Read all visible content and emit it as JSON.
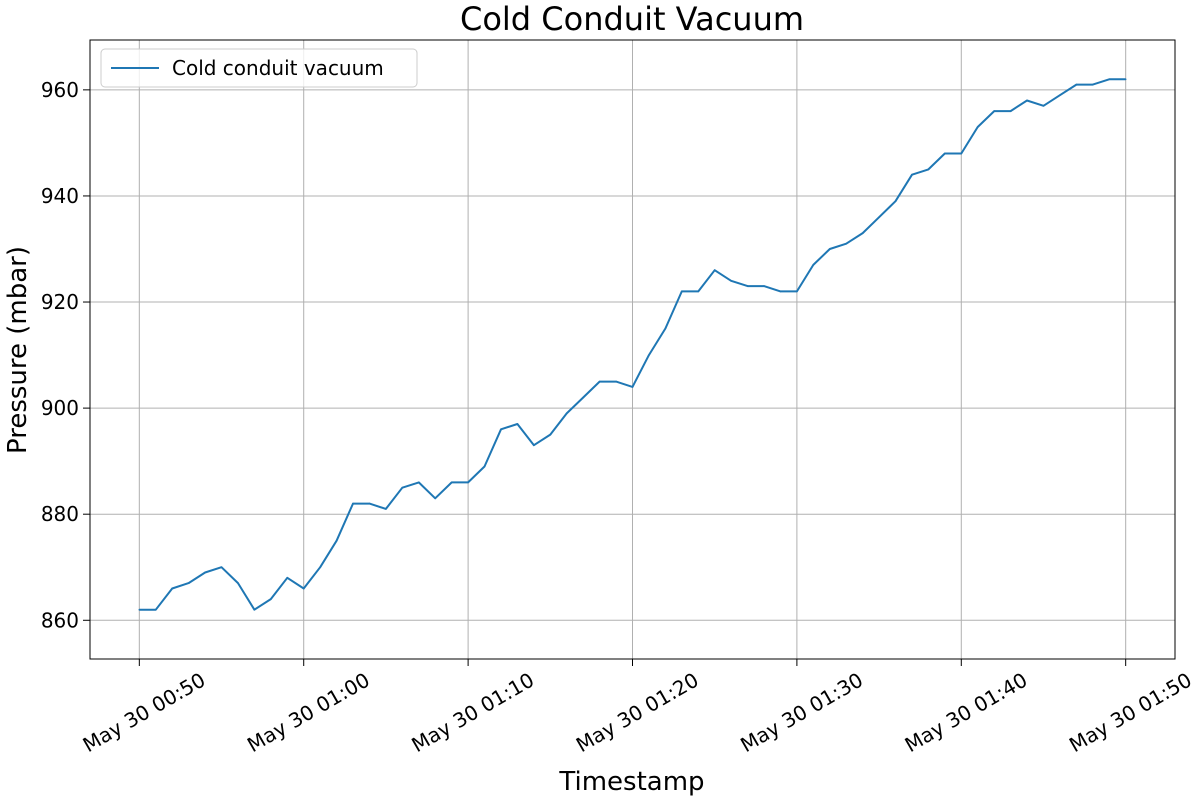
{
  "chart_data": {
    "type": "line",
    "title": "Cold Conduit Vacuum",
    "xlabel": "Timestamp",
    "ylabel": "Pressure (mbar)",
    "x_ticks": [
      "May 30 00:50",
      "May 30 01:00",
      "May 30 01:10",
      "May 30 01:20",
      "May 30 01:30",
      "May 30 01:40",
      "May 30 01:50"
    ],
    "y_ticks": [
      860,
      880,
      900,
      920,
      940,
      960
    ],
    "xlim": [
      "May 30 00:47",
      "May 30 01:53"
    ],
    "ylim": [
      852.7,
      969.4
    ],
    "grid": true,
    "legend_position": "upper left",
    "series": [
      {
        "name": "Cold conduit vacuum",
        "color": "#1f77b4",
        "x": [
          "May 30 00:50",
          "May 30 00:51",
          "May 30 00:52",
          "May 30 00:53",
          "May 30 00:54",
          "May 30 00:55",
          "May 30 00:56",
          "May 30 00:57",
          "May 30 00:58",
          "May 30 00:59",
          "May 30 01:00",
          "May 30 01:01",
          "May 30 01:02",
          "May 30 01:03",
          "May 30 01:04",
          "May 30 01:05",
          "May 30 01:06",
          "May 30 01:07",
          "May 30 01:08",
          "May 30 01:09",
          "May 30 01:10",
          "May 30 01:11",
          "May 30 01:12",
          "May 30 01:13",
          "May 30 01:14",
          "May 30 01:15",
          "May 30 01:16",
          "May 30 01:17",
          "May 30 01:18",
          "May 30 01:19",
          "May 30 01:20",
          "May 30 01:21",
          "May 30 01:22",
          "May 30 01:23",
          "May 30 01:24",
          "May 30 01:25",
          "May 30 01:26",
          "May 30 01:27",
          "May 30 01:28",
          "May 30 01:29",
          "May 30 01:30",
          "May 30 01:31",
          "May 30 01:32",
          "May 30 01:33",
          "May 30 01:34",
          "May 30 01:35",
          "May 30 01:36",
          "May 30 01:37",
          "May 30 01:38",
          "May 30 01:39",
          "May 30 01:40",
          "May 30 01:41",
          "May 30 01:42",
          "May 30 01:43",
          "May 30 01:44",
          "May 30 01:45",
          "May 30 01:46",
          "May 30 01:47",
          "May 30 01:48",
          "May 30 01:49",
          "May 30 01:50"
        ],
        "values": [
          862,
          862,
          866,
          867,
          869,
          870,
          867,
          862,
          864,
          868,
          866,
          870,
          875,
          882,
          882,
          881,
          885,
          886,
          883,
          886,
          886,
          889,
          896,
          897,
          893,
          895,
          899,
          902,
          905,
          905,
          904,
          910,
          915,
          922,
          922,
          926,
          924,
          923,
          923,
          922,
          922,
          927,
          930,
          931,
          933,
          936,
          939,
          944,
          945,
          948,
          948,
          953,
          956,
          956,
          958,
          957,
          959,
          961,
          961,
          962,
          962
        ]
      }
    ]
  }
}
